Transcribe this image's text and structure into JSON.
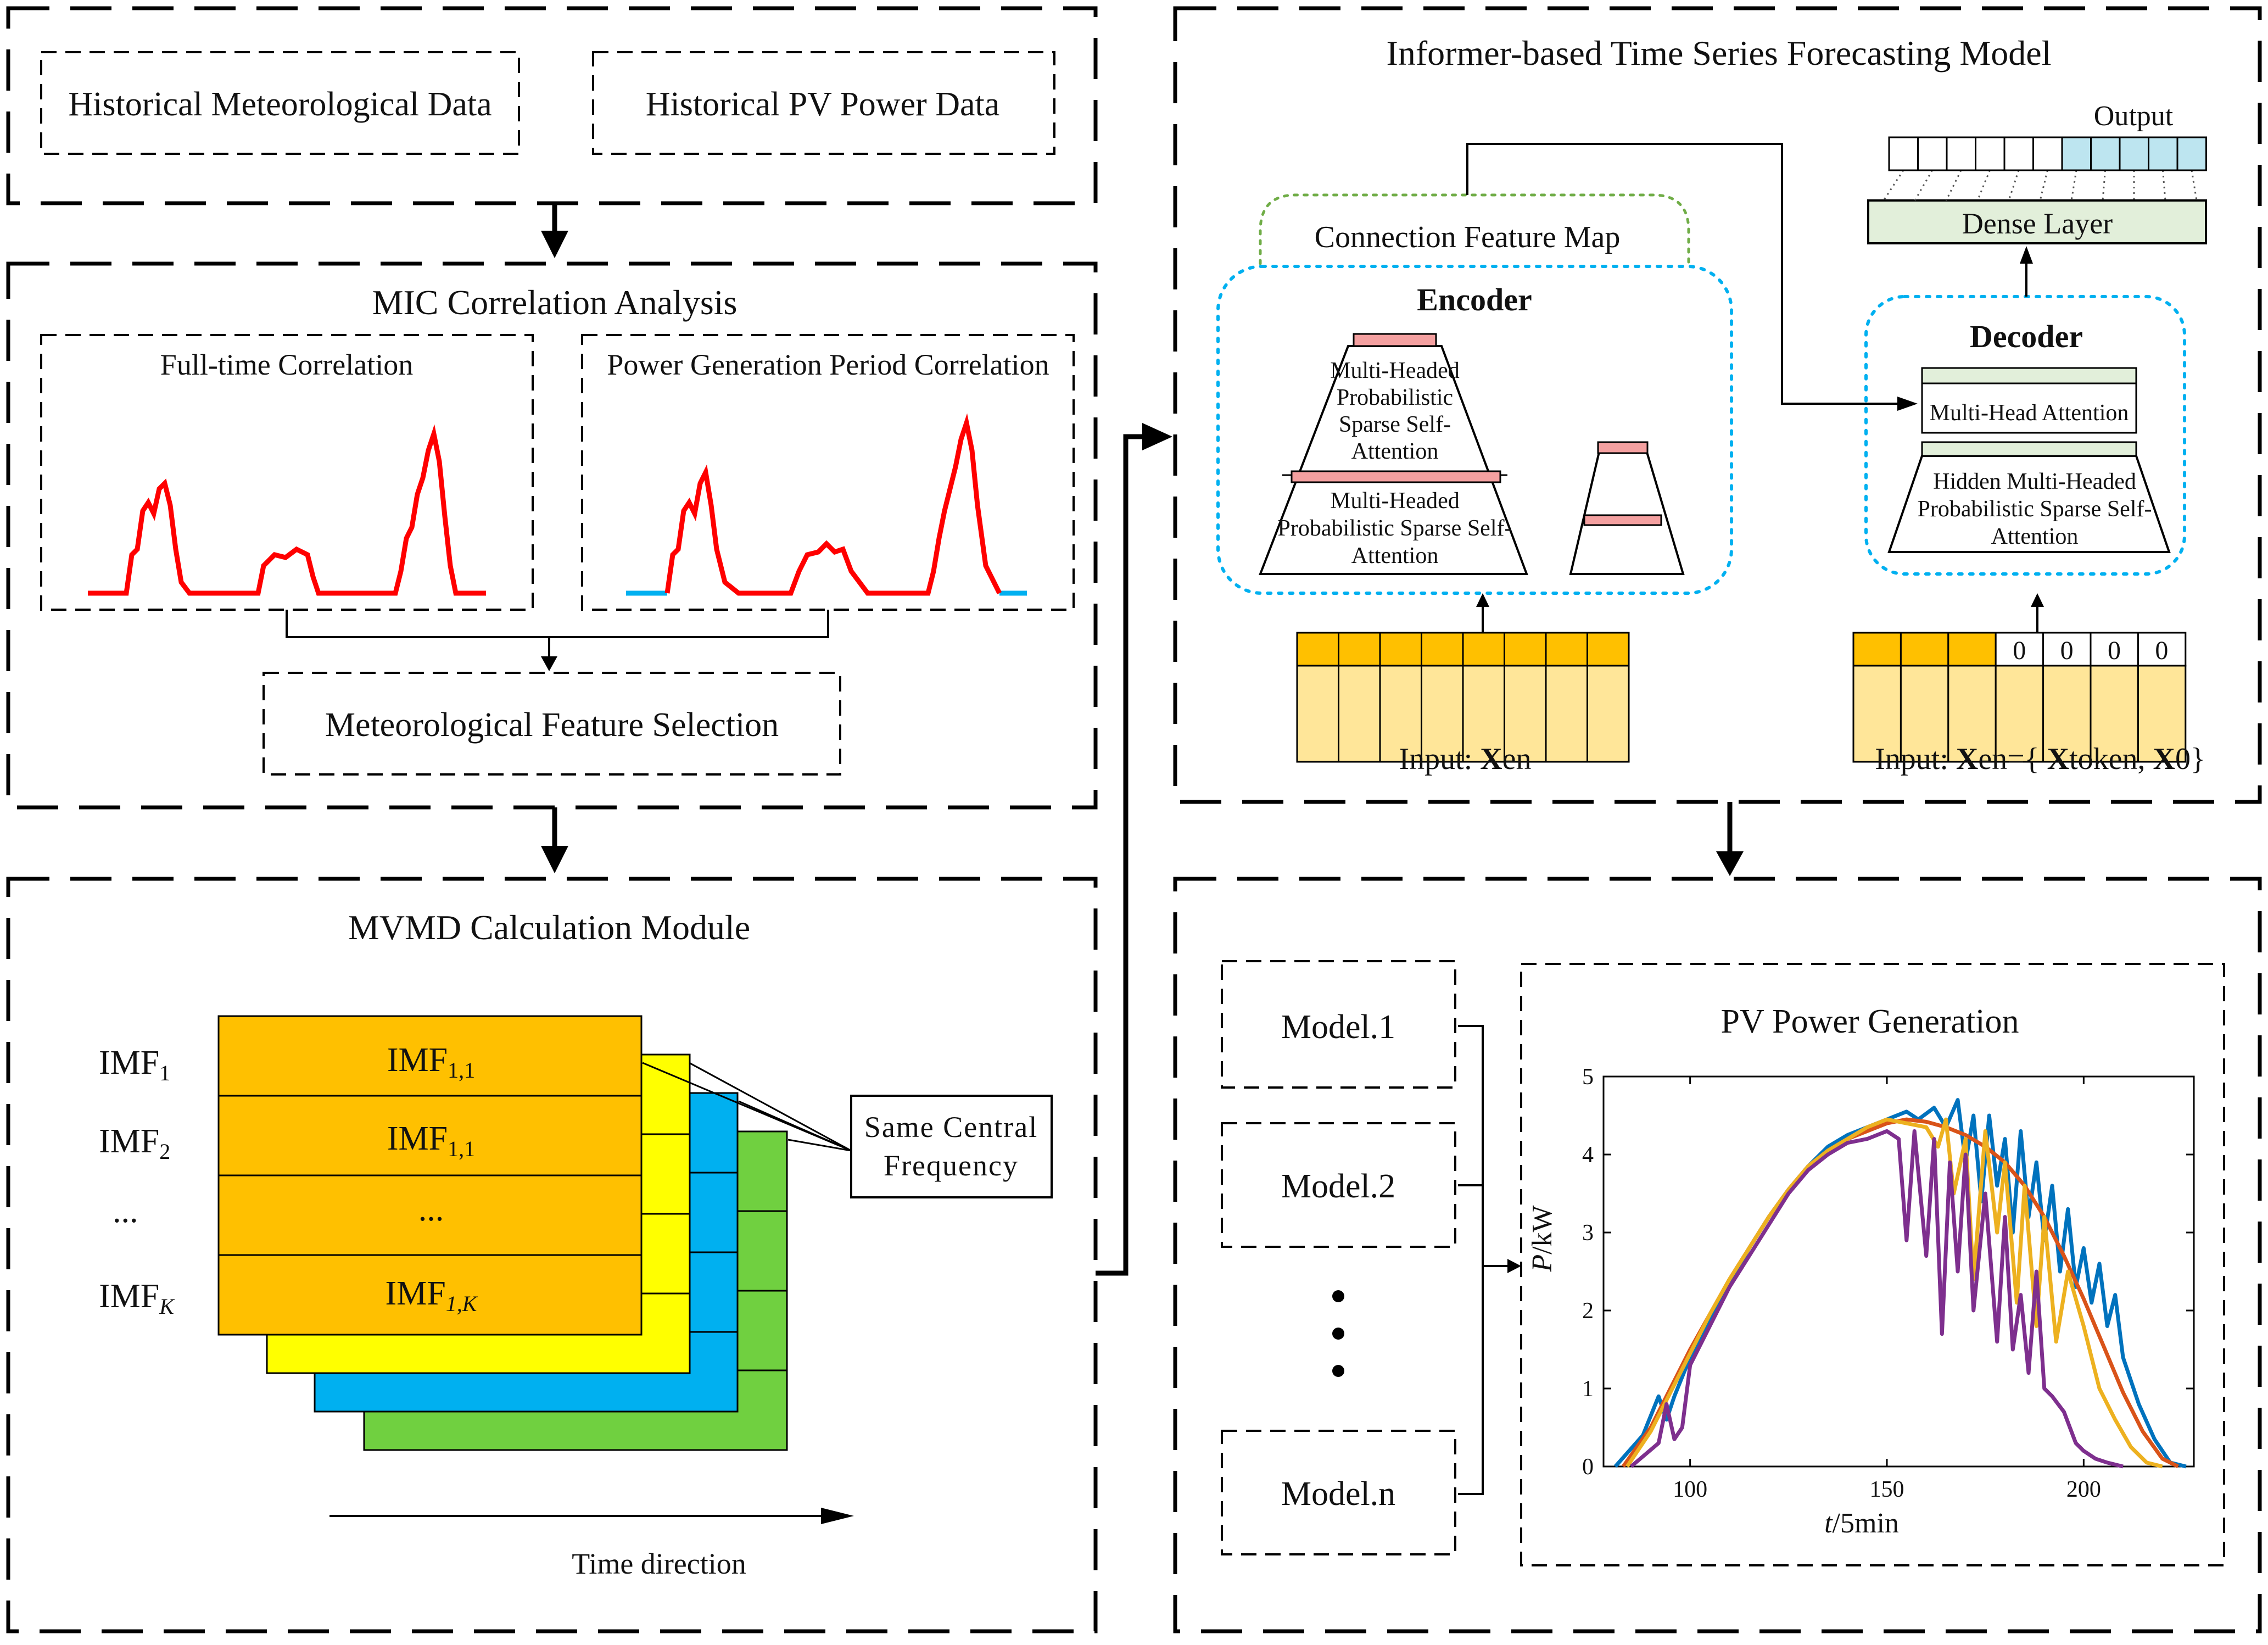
{
  "inputs": {
    "meteorological": "Historical Meteorological Data",
    "pv_power": "Historical PV Power  Data"
  },
  "mic": {
    "title": "MIC Correlation Analysis",
    "full_time": "Full-time Correlation",
    "period": "Power Generation Period Correlation",
    "selection": "Meteorological Feature Selection"
  },
  "mvmd": {
    "title": "MVMD Calculation Module",
    "imf_labels": [
      "IMF",
      "IMF",
      "...",
      "IMF"
    ],
    "imf_label_subs": [
      "1",
      "2",
      "",
      "K"
    ],
    "layer_labels": [
      "IMF",
      "IMF",
      "...",
      "IMF"
    ],
    "layer_label_subs": [
      "1,1",
      "1,1",
      "",
      "1,K"
    ],
    "same_freq_line1": "Same Central",
    "same_freq_line2": "Frequency",
    "time_direction": "Time direction",
    "layer_colors": [
      "#FFC000",
      "#FFFF00",
      "#00B0F0",
      "#70D040"
    ]
  },
  "informer": {
    "title": "Informer-based Time Series Forecasting Model",
    "connection_map": "Connection Feature Map",
    "encoder": "Encoder",
    "enc_attn1": [
      "Multi-Headed",
      "Probabilistic",
      "Sparse Self-",
      "Attention"
    ],
    "enc_attn2": [
      "Multi-Headed",
      "Probabilistic Sparse Self-",
      "Attention"
    ],
    "decoder": "Decoder",
    "dec_mha": "Multi-Head Attention",
    "dec_hidden": [
      "Hidden Multi-Headed",
      "Probabilistic Sparse Self-",
      "Attention"
    ],
    "dense_layer": "Dense Layer",
    "output": "Output",
    "enc_input_prefix": "Input: ",
    "enc_input_bold": "X",
    "enc_input_rest": "en",
    "dec_input_prefix": "Input: ",
    "dec_input_x": "X",
    "dec_input_mid": "en={ ",
    "dec_input_x2": "X",
    "dec_input_mid2": "token, ",
    "dec_input_x3": "X",
    "dec_input_end": "0}",
    "zero_labels": [
      "0",
      "0",
      "0",
      "0"
    ]
  },
  "models": {
    "labels": [
      "Model.1",
      "Model.2",
      "Model.n"
    ]
  },
  "chart_data": {
    "type": "line",
    "title": "PV Power Generation",
    "xlabel_italic": "t",
    "xlabel_rest": "/5min",
    "ylabel_italic": "P",
    "ylabel_rest": "/kW",
    "xlim": [
      78,
      228
    ],
    "ylim": [
      0,
      5
    ],
    "xticks": [
      100,
      150,
      200
    ],
    "yticks": [
      0,
      1,
      2,
      3,
      4,
      5
    ],
    "series": [
      {
        "name": "blue",
        "color": "#0072BD",
        "x": [
          81,
          88,
          92,
          94,
          96,
          100,
          105,
          110,
          115,
          120,
          125,
          130,
          135,
          140,
          145,
          150,
          155,
          158,
          162,
          165,
          168,
          170,
          172,
          174,
          176,
          178,
          180,
          182,
          184,
          186,
          188,
          190,
          192,
          194,
          196,
          198,
          200,
          202,
          204,
          206,
          208,
          210,
          214,
          218,
          222,
          226
        ],
        "y": [
          0,
          0.4,
          0.9,
          0.6,
          0.9,
          1.4,
          1.85,
          2.35,
          2.8,
          3.2,
          3.55,
          3.85,
          4.1,
          4.25,
          4.35,
          4.45,
          4.55,
          4.45,
          4.6,
          4.35,
          4.7,
          3.9,
          4.5,
          3.4,
          4.5,
          3.6,
          4.2,
          3.0,
          4.3,
          3.2,
          3.9,
          2.9,
          3.6,
          2.5,
          3.3,
          2.3,
          2.8,
          2.1,
          2.6,
          1.8,
          2.2,
          1.4,
          0.8,
          0.35,
          0.05,
          0
        ]
      },
      {
        "name": "orange",
        "color": "#D95319",
        "x": [
          83,
          90,
          95,
          100,
          105,
          110,
          115,
          120,
          125,
          130,
          135,
          140,
          145,
          150,
          155,
          160,
          165,
          170,
          175,
          180,
          185,
          190,
          195,
          200,
          205,
          210,
          215,
          220,
          224
        ],
        "y": [
          0,
          0.5,
          1.0,
          1.5,
          1.95,
          2.4,
          2.8,
          3.2,
          3.55,
          3.85,
          4.05,
          4.2,
          4.3,
          4.4,
          4.45,
          4.42,
          4.35,
          4.25,
          4.1,
          3.9,
          3.6,
          3.2,
          2.7,
          2.15,
          1.55,
          0.95,
          0.45,
          0.1,
          0
        ]
      },
      {
        "name": "yellow",
        "color": "#EDB120",
        "x": [
          84,
          90,
          95,
          100,
          105,
          110,
          115,
          120,
          125,
          130,
          135,
          140,
          145,
          150,
          155,
          160,
          163,
          165,
          167,
          170,
          172,
          175,
          178,
          180,
          183,
          185,
          188,
          190,
          193,
          196,
          200,
          204,
          208,
          212,
          216,
          220
        ],
        "y": [
          0,
          0.45,
          0.95,
          1.45,
          1.95,
          2.4,
          2.8,
          3.2,
          3.55,
          3.85,
          4.05,
          4.2,
          4.35,
          4.45,
          4.4,
          4.35,
          4.1,
          4.45,
          3.5,
          4.2,
          2.4,
          4.3,
          3.0,
          3.9,
          2.1,
          3.6,
          1.8,
          3.2,
          1.6,
          2.5,
          1.8,
          1.0,
          0.6,
          0.25,
          0.05,
          0
        ]
      },
      {
        "name": "purple",
        "color": "#7E2F8E",
        "x": [
          85,
          92,
          94,
          96,
          98,
          100,
          105,
          110,
          115,
          120,
          125,
          130,
          135,
          140,
          145,
          150,
          153,
          155,
          157,
          160,
          162,
          164,
          166,
          168,
          170,
          172,
          175,
          178,
          180,
          182,
          184,
          186,
          188,
          190,
          192,
          195,
          198,
          200,
          203,
          206,
          210
        ],
        "y": [
          0,
          0.3,
          0.8,
          0.35,
          0.5,
          1.3,
          1.8,
          2.3,
          2.7,
          3.1,
          3.5,
          3.8,
          4.0,
          4.15,
          4.2,
          4.3,
          4.2,
          2.9,
          4.3,
          2.7,
          4.2,
          1.7,
          3.9,
          2.5,
          4.0,
          2.0,
          3.5,
          1.6,
          3.2,
          1.5,
          2.2,
          1.2,
          2.5,
          1.0,
          0.9,
          0.7,
          0.3,
          0.2,
          0.1,
          0.05,
          0
        ]
      }
    ]
  }
}
